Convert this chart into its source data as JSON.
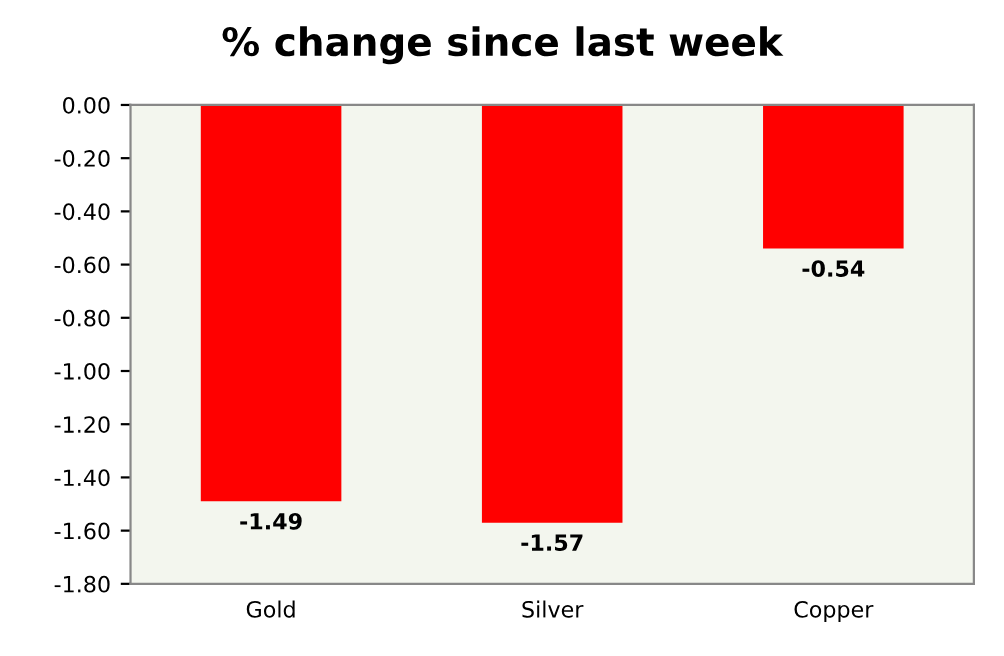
{
  "chart_data": {
    "type": "bar",
    "title": "% change since last week",
    "categories": [
      "Gold",
      "Silver",
      "Copper"
    ],
    "values": [
      -1.49,
      -1.57,
      -0.54
    ],
    "color": "#ff0000",
    "ylim": [
      -1.8,
      0
    ],
    "yticks": [
      {
        "value": 0,
        "label": "0.00"
      },
      {
        "value": -0.2,
        "label": "-0.20"
      },
      {
        "value": -0.4,
        "label": "-0.40"
      },
      {
        "value": -0.6,
        "label": "-0.60"
      },
      {
        "value": -0.8,
        "label": "-0.80"
      },
      {
        "value": -1.0,
        "label": "-1.00"
      },
      {
        "value": -1.2,
        "label": "-1.20"
      },
      {
        "value": -1.4,
        "label": "-1.40"
      },
      {
        "value": -1.6,
        "label": "-1.60"
      },
      {
        "value": -1.8,
        "label": "-1.80"
      }
    ],
    "data_labels": true,
    "grid": false,
    "legend": false
  }
}
